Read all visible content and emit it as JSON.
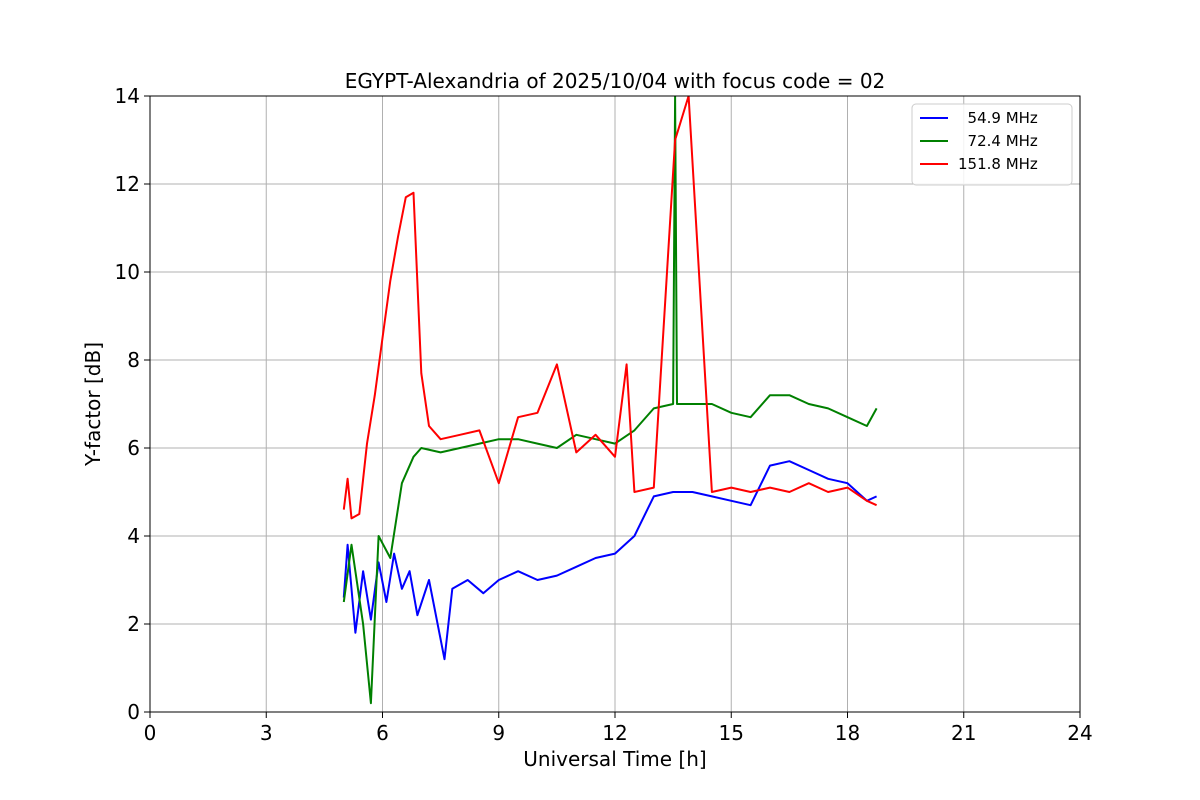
{
  "chart_data": {
    "type": "line",
    "title": "EGYPT-Alexandria of 2025/10/04 with focus code = 02",
    "xlabel": "Universal Time [h]",
    "ylabel": "Y-factor [dB]",
    "xlim": [
      0,
      24
    ],
    "ylim": [
      0,
      14
    ],
    "xticks": [
      0,
      3,
      6,
      9,
      12,
      15,
      18,
      21,
      24
    ],
    "yticks": [
      0,
      2,
      4,
      6,
      8,
      10,
      12,
      14
    ],
    "grid": true,
    "legend_position": "top-right",
    "series": [
      {
        "name": "  54.9 MHz",
        "color": "#0000ff",
        "points": [
          [
            5.0,
            2.6
          ],
          [
            5.1,
            3.8
          ],
          [
            5.3,
            1.8
          ],
          [
            5.5,
            3.2
          ],
          [
            5.7,
            2.1
          ],
          [
            5.9,
            3.4
          ],
          [
            6.1,
            2.5
          ],
          [
            6.3,
            3.6
          ],
          [
            6.5,
            2.8
          ],
          [
            6.7,
            3.2
          ],
          [
            6.9,
            2.2
          ],
          [
            7.2,
            3.0
          ],
          [
            7.6,
            1.2
          ],
          [
            7.8,
            2.8
          ],
          [
            8.2,
            3.0
          ],
          [
            8.6,
            2.7
          ],
          [
            9.0,
            3.0
          ],
          [
            9.5,
            3.2
          ],
          [
            10.0,
            3.0
          ],
          [
            10.5,
            3.1
          ],
          [
            11.0,
            3.3
          ],
          [
            11.5,
            3.5
          ],
          [
            12.0,
            3.6
          ],
          [
            12.5,
            4.0
          ],
          [
            13.0,
            4.9
          ],
          [
            13.5,
            5.0
          ],
          [
            14.0,
            5.0
          ],
          [
            14.5,
            4.9
          ],
          [
            15.0,
            4.8
          ],
          [
            15.5,
            4.7
          ],
          [
            16.0,
            5.6
          ],
          [
            16.5,
            5.7
          ],
          [
            17.0,
            5.5
          ],
          [
            17.5,
            5.3
          ],
          [
            18.0,
            5.2
          ],
          [
            18.5,
            4.8
          ],
          [
            18.75,
            4.9
          ]
        ]
      },
      {
        "name": "  72.4 MHz",
        "color": "#008000",
        "points": [
          [
            5.0,
            2.5
          ],
          [
            5.2,
            3.8
          ],
          [
            5.5,
            2.0
          ],
          [
            5.7,
            0.2
          ],
          [
            5.9,
            4.0
          ],
          [
            6.2,
            3.5
          ],
          [
            6.5,
            5.2
          ],
          [
            6.8,
            5.8
          ],
          [
            7.0,
            6.0
          ],
          [
            7.5,
            5.9
          ],
          [
            8.0,
            6.0
          ],
          [
            8.5,
            6.1
          ],
          [
            9.0,
            6.2
          ],
          [
            9.5,
            6.2
          ],
          [
            10.0,
            6.1
          ],
          [
            10.5,
            6.0
          ],
          [
            11.0,
            6.3
          ],
          [
            11.5,
            6.2
          ],
          [
            12.0,
            6.1
          ],
          [
            12.5,
            6.4
          ],
          [
            13.0,
            6.9
          ],
          [
            13.5,
            7.0
          ],
          [
            13.55,
            14.0
          ],
          [
            13.6,
            7.0
          ],
          [
            14.0,
            7.0
          ],
          [
            14.5,
            7.0
          ],
          [
            15.0,
            6.8
          ],
          [
            15.5,
            6.7
          ],
          [
            16.0,
            7.2
          ],
          [
            16.5,
            7.2
          ],
          [
            17.0,
            7.0
          ],
          [
            17.5,
            6.9
          ],
          [
            18.0,
            6.7
          ],
          [
            18.5,
            6.5
          ],
          [
            18.75,
            6.9
          ]
        ]
      },
      {
        "name": "151.8 MHz",
        "color": "#ff0000",
        "points": [
          [
            5.0,
            4.6
          ],
          [
            5.1,
            5.3
          ],
          [
            5.2,
            4.4
          ],
          [
            5.4,
            4.5
          ],
          [
            5.6,
            6.1
          ],
          [
            5.8,
            7.2
          ],
          [
            6.0,
            8.5
          ],
          [
            6.2,
            9.8
          ],
          [
            6.4,
            10.8
          ],
          [
            6.6,
            11.7
          ],
          [
            6.8,
            11.8
          ],
          [
            7.0,
            7.7
          ],
          [
            7.2,
            6.5
          ],
          [
            7.5,
            6.2
          ],
          [
            8.0,
            6.3
          ],
          [
            8.5,
            6.4
          ],
          [
            9.0,
            5.2
          ],
          [
            9.5,
            6.7
          ],
          [
            10.0,
            6.8
          ],
          [
            10.5,
            7.9
          ],
          [
            11.0,
            5.9
          ],
          [
            11.5,
            6.3
          ],
          [
            12.0,
            5.8
          ],
          [
            12.3,
            7.9
          ],
          [
            12.5,
            5.0
          ],
          [
            13.0,
            5.1
          ],
          [
            13.55,
            13.0
          ],
          [
            13.9,
            14.0
          ],
          [
            14.5,
            5.0
          ],
          [
            15.0,
            5.1
          ],
          [
            15.5,
            5.0
          ],
          [
            16.0,
            5.1
          ],
          [
            16.5,
            5.0
          ],
          [
            17.0,
            5.2
          ],
          [
            17.5,
            5.0
          ],
          [
            18.0,
            5.1
          ],
          [
            18.5,
            4.8
          ],
          [
            18.75,
            4.7
          ]
        ]
      }
    ],
    "annotations": []
  }
}
